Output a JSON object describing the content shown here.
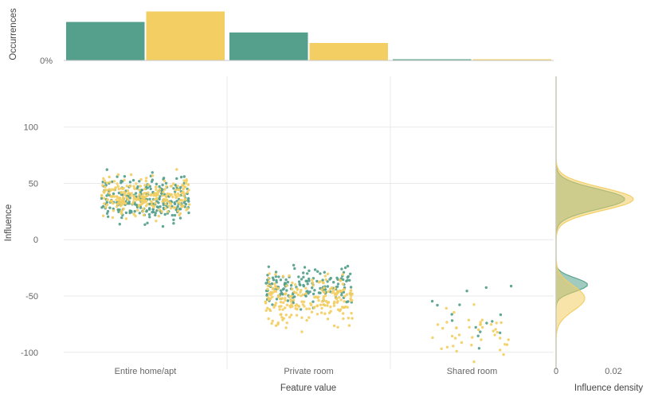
{
  "colors": {
    "teal": "#55a08c",
    "yellow": "#f2ce63",
    "grid": "#e9e9e9",
    "axis": "#c9c9c9",
    "text": "#555555"
  },
  "chart_data": {
    "type": "scatter",
    "description": "Categorical influence scatter plot with top occurrences histogram and right-side influence density marginal, two series (teal, yellow)",
    "categories": [
      "Entire home/apt",
      "Private room",
      "Shared room"
    ],
    "series": [
      "teal",
      "yellow"
    ],
    "top_histogram": {
      "ylabel": "Occurrences",
      "zero_tick_label": "0%",
      "ymax": 45,
      "series": [
        {
          "name": "teal",
          "values": [
            33,
            24,
            1
          ]
        },
        {
          "name": "yellow",
          "values": [
            42,
            15,
            1
          ]
        }
      ]
    },
    "scatter": {
      "xlabel": "Feature value",
      "ylabel": "Influence",
      "yticks": [
        100,
        50,
        0,
        -50,
        -100
      ],
      "ylim": [
        -115,
        145
      ],
      "clusters": [
        {
          "category": 0,
          "series": "teal",
          "count": 250,
          "mean": 36,
          "std": 10,
          "min": 6,
          "max": 73
        },
        {
          "category": 0,
          "series": "yellow",
          "count": 250,
          "mean": 38,
          "std": 9,
          "min": 16,
          "max": 76
        },
        {
          "category": 1,
          "series": "teal",
          "count": 160,
          "mean": -41,
          "std": 9,
          "min": -80,
          "max": -19
        },
        {
          "category": 1,
          "series": "yellow",
          "count": 220,
          "mean": -54,
          "std": 11,
          "min": -98,
          "max": -28
        },
        {
          "category": 2,
          "series": "teal",
          "count": 16,
          "mean": -68,
          "std": 16,
          "min": -100,
          "max": -37
        },
        {
          "category": 2,
          "series": "yellow",
          "count": 42,
          "mean": -82,
          "std": 13,
          "min": -110,
          "max": -50
        }
      ]
    },
    "density": {
      "xlabel": "Influence density",
      "xticks": [
        0,
        0.02
      ],
      "components": {
        "teal": [
          {
            "mu": 36,
            "sigma": 9,
            "peak": 0.024
          },
          {
            "mu": -40,
            "sigma": 6,
            "peak": 0.011
          }
        ],
        "yellow": [
          {
            "mu": 36,
            "sigma": 10,
            "peak": 0.027
          },
          {
            "mu": -52,
            "sigma": 11,
            "peak": 0.01
          }
        ]
      }
    }
  }
}
